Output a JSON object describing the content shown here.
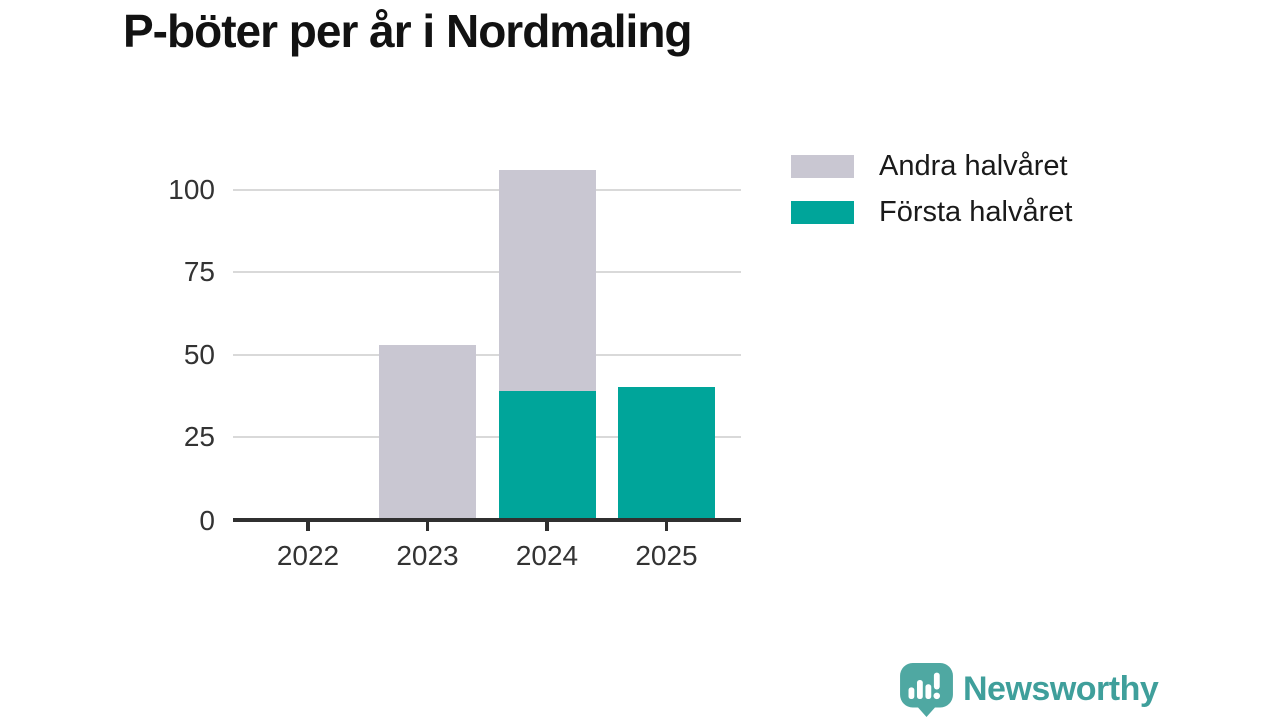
{
  "page": {
    "title": "P-böter per år i Nordmaling"
  },
  "chart_data": {
    "type": "bar",
    "stacked": true,
    "title": "P-böter per år i Nordmaling",
    "categories": [
      "2022",
      "2023",
      "2024",
      "2025"
    ],
    "series": [
      {
        "name": "Första halvåret",
        "color": "#00a59a",
        "values": [
          0,
          0,
          39,
          40
        ]
      },
      {
        "name": "Andra halvåret",
        "color": "#c9c7d2",
        "values": [
          0,
          53,
          67,
          0
        ]
      }
    ],
    "xlabel": "",
    "ylabel": "",
    "yticks": [
      0,
      25,
      50,
      75,
      100
    ],
    "ylim": [
      0,
      112
    ],
    "grid": true,
    "legend_position": "top-right"
  },
  "legend": {
    "items": [
      {
        "label": "Andra halvåret",
        "color": "#c9c7d2"
      },
      {
        "label": "Första halvåret",
        "color": "#00a59a"
      }
    ]
  },
  "branding": {
    "logo_text": "Newsworthy",
    "icon": "speech-bubble-bar-chart-icon",
    "icon_color": "#4fa8a2",
    "text_color": "#3f9f9b"
  }
}
